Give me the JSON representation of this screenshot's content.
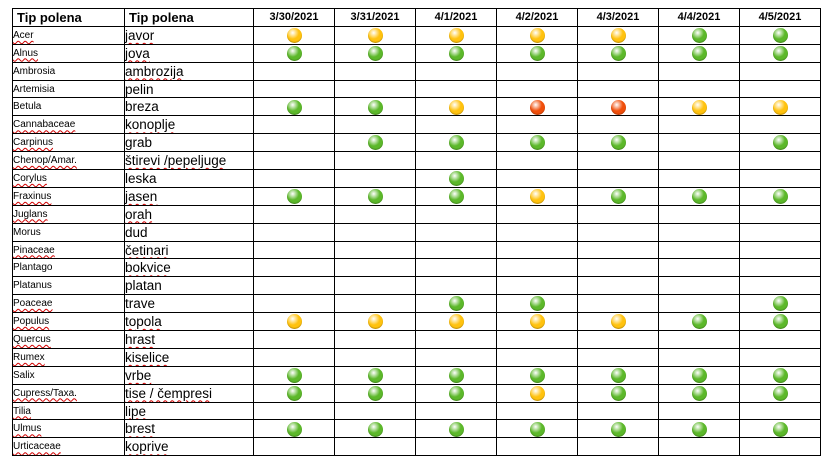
{
  "colors": {
    "green": "#5cb82a",
    "yellow": "#ffc20e",
    "orange": "#f04e0a"
  },
  "headers": {
    "latin": "Tip polena",
    "local": "Tip polena",
    "dates": [
      "3/30/2021",
      "3/31/2021",
      "4/1/2021",
      "4/2/2021",
      "4/3/2021",
      "4/4/2021",
      "4/5/2021"
    ]
  },
  "rows": [
    {
      "latin": "Acer",
      "local": "javor",
      "levels": [
        "yellow",
        "yellow",
        "yellow",
        "yellow",
        "yellow",
        "green",
        "green"
      ]
    },
    {
      "latin": "Alnus",
      "local": "jova",
      "levels": [
        "green",
        "green",
        "green",
        "green",
        "green",
        "green",
        "green"
      ]
    },
    {
      "latin": "Ambrosia",
      "local": "ambrozija",
      "levels": [
        "",
        "",
        "",
        "",
        "",
        "",
        ""
      ]
    },
    {
      "latin": "Artemisia",
      "local": "pelin",
      "levels": [
        "",
        "",
        "",
        "",
        "",
        "",
        ""
      ]
    },
    {
      "latin": "Betula",
      "local": "breza",
      "levels": [
        "green",
        "green",
        "yellow",
        "orange",
        "orange",
        "yellow",
        "yellow"
      ]
    },
    {
      "latin": "Cannabaceae",
      "local": "konoplje",
      "levels": [
        "",
        "",
        "",
        "",
        "",
        "",
        ""
      ]
    },
    {
      "latin": "Carpinus",
      "local": "grab",
      "levels": [
        "",
        "green",
        "green",
        "green",
        "green",
        "",
        "green"
      ]
    },
    {
      "latin": "Chenop/Amar.",
      "local": "štirevi /pepeljuge",
      "levels": [
        "",
        "",
        "",
        "",
        "",
        "",
        ""
      ]
    },
    {
      "latin": "Corylus",
      "local": "leska",
      "levels": [
        "",
        "",
        "green",
        "",
        "",
        "",
        ""
      ]
    },
    {
      "latin": "Fraxinus",
      "local": "jasen",
      "levels": [
        "green",
        "green",
        "green",
        "yellow",
        "green",
        "green",
        "green"
      ]
    },
    {
      "latin": "Juglans",
      "local": "orah",
      "levels": [
        "",
        "",
        "",
        "",
        "",
        "",
        ""
      ]
    },
    {
      "latin": "Morus",
      "local": "dud",
      "levels": [
        "",
        "",
        "",
        "",
        "",
        "",
        ""
      ]
    },
    {
      "latin": "Pinaceae",
      "local": "četinari",
      "levels": [
        "",
        "",
        "",
        "",
        "",
        "",
        ""
      ]
    },
    {
      "latin": "Plantago",
      "local": "bokvice",
      "levels": [
        "",
        "",
        "",
        "",
        "",
        "",
        ""
      ]
    },
    {
      "latin": "Platanus",
      "local": "platan",
      "levels": [
        "",
        "",
        "",
        "",
        "",
        "",
        ""
      ]
    },
    {
      "latin": "Poaceae",
      "local": "trave",
      "levels": [
        "",
        "",
        "green",
        "green",
        "",
        "",
        "green"
      ]
    },
    {
      "latin": "Populus",
      "local": "topola",
      "levels": [
        "yellow",
        "yellow",
        "yellow",
        "yellow",
        "yellow",
        "green",
        "green"
      ]
    },
    {
      "latin": "Quercus",
      "local": "hrast",
      "levels": [
        "",
        "",
        "",
        "",
        "",
        "",
        ""
      ]
    },
    {
      "latin": "Rumex",
      "local": "kiselice",
      "levels": [
        "",
        "",
        "",
        "",
        "",
        "",
        ""
      ]
    },
    {
      "latin": "Salix",
      "local": "vrbe",
      "levels": [
        "green",
        "green",
        "green",
        "green",
        "green",
        "green",
        "green"
      ]
    },
    {
      "latin": "Cupress/Taxa.",
      "local": "tise / čempresi",
      "levels": [
        "green",
        "green",
        "green",
        "yellow",
        "green",
        "green",
        "green"
      ]
    },
    {
      "latin": "Tilia",
      "local": "lipe",
      "levels": [
        "",
        "",
        "",
        "",
        "",
        "",
        ""
      ]
    },
    {
      "latin": "Ulmus",
      "local": "brest",
      "levels": [
        "green",
        "green",
        "green",
        "green",
        "green",
        "green",
        "green"
      ]
    },
    {
      "latin": "Urticaceae",
      "local": "koprive",
      "levels": [
        "",
        "",
        "",
        "",
        "",
        "",
        ""
      ]
    }
  ]
}
